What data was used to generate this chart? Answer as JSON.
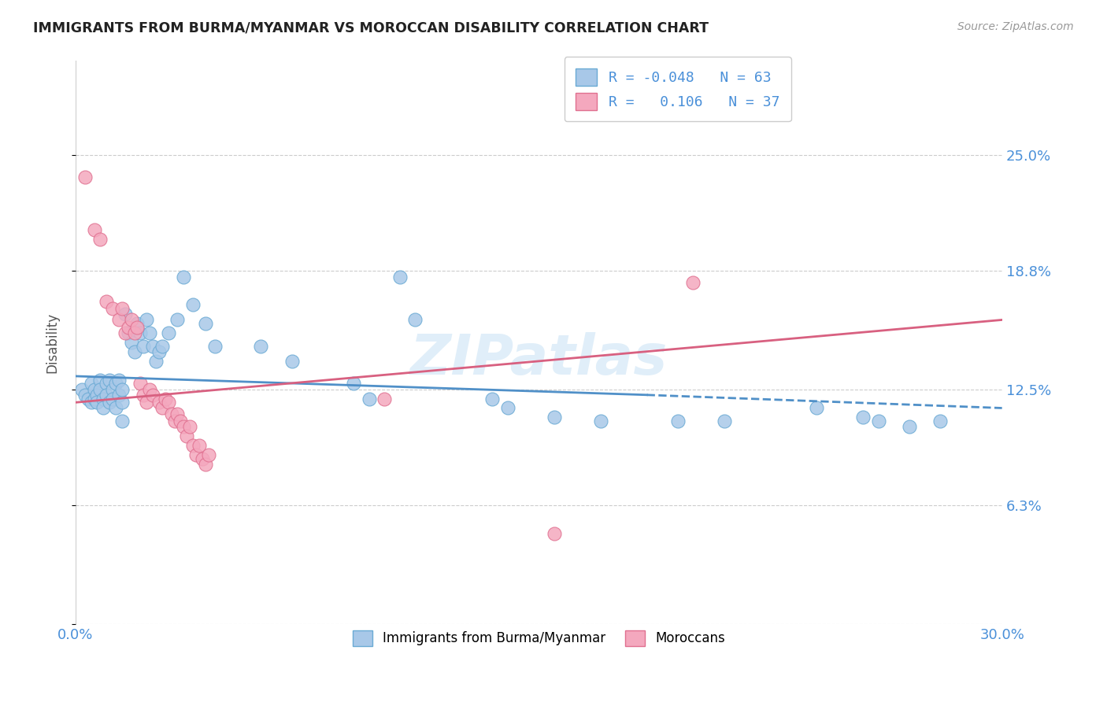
{
  "title": "IMMIGRANTS FROM BURMA/MYANMAR VS MOROCCAN DISABILITY CORRELATION CHART",
  "source": "Source: ZipAtlas.com",
  "ylabel": "Disability",
  "xlim": [
    0.0,
    0.3
  ],
  "ylim": [
    0.0,
    0.3
  ],
  "yticks": [
    0.0,
    0.063,
    0.125,
    0.188,
    0.25
  ],
  "ytick_labels": [
    "",
    "6.3%",
    "12.5%",
    "18.8%",
    "25.0%"
  ],
  "xticks": [
    0.0,
    0.05,
    0.1,
    0.15,
    0.2,
    0.25,
    0.3
  ],
  "xtick_labels": [
    "0.0%",
    "",
    "",
    "",
    "",
    "",
    "30.0%"
  ],
  "blue_color": "#a8c8e8",
  "pink_color": "#f4a8be",
  "blue_edge_color": "#6aaad4",
  "pink_edge_color": "#e07090",
  "blue_line_color": "#5090c8",
  "pink_line_color": "#d86080",
  "watermark": "ZIPatlas",
  "title_color": "#222222",
  "axis_tick_color": "#4a90d9",
  "legend_text_color": "#4a90d9",
  "blue_scatter": [
    [
      0.002,
      0.125
    ],
    [
      0.003,
      0.122
    ],
    [
      0.004,
      0.12
    ],
    [
      0.005,
      0.118
    ],
    [
      0.005,
      0.128
    ],
    [
      0.006,
      0.125
    ],
    [
      0.006,
      0.12
    ],
    [
      0.007,
      0.122
    ],
    [
      0.007,
      0.118
    ],
    [
      0.008,
      0.13
    ],
    [
      0.008,
      0.125
    ],
    [
      0.009,
      0.12
    ],
    [
      0.009,
      0.115
    ],
    [
      0.01,
      0.128
    ],
    [
      0.01,
      0.122
    ],
    [
      0.011,
      0.13
    ],
    [
      0.011,
      0.118
    ],
    [
      0.012,
      0.125
    ],
    [
      0.012,
      0.12
    ],
    [
      0.013,
      0.115
    ],
    [
      0.013,
      0.128
    ],
    [
      0.014,
      0.122
    ],
    [
      0.014,
      0.13
    ],
    [
      0.015,
      0.118
    ],
    [
      0.015,
      0.125
    ],
    [
      0.016,
      0.165
    ],
    [
      0.017,
      0.155
    ],
    [
      0.018,
      0.15
    ],
    [
      0.019,
      0.145
    ],
    [
      0.02,
      0.16
    ],
    [
      0.021,
      0.155
    ],
    [
      0.022,
      0.148
    ],
    [
      0.023,
      0.162
    ],
    [
      0.024,
      0.155
    ],
    [
      0.025,
      0.148
    ],
    [
      0.026,
      0.14
    ],
    [
      0.027,
      0.145
    ],
    [
      0.028,
      0.148
    ],
    [
      0.03,
      0.155
    ],
    [
      0.033,
      0.162
    ],
    [
      0.035,
      0.185
    ],
    [
      0.038,
      0.17
    ],
    [
      0.042,
      0.16
    ],
    [
      0.045,
      0.148
    ],
    [
      0.06,
      0.148
    ],
    [
      0.07,
      0.14
    ],
    [
      0.09,
      0.128
    ],
    [
      0.095,
      0.12
    ],
    [
      0.105,
      0.185
    ],
    [
      0.11,
      0.162
    ],
    [
      0.135,
      0.12
    ],
    [
      0.14,
      0.115
    ],
    [
      0.155,
      0.11
    ],
    [
      0.17,
      0.108
    ],
    [
      0.195,
      0.108
    ],
    [
      0.21,
      0.108
    ],
    [
      0.24,
      0.115
    ],
    [
      0.255,
      0.11
    ],
    [
      0.26,
      0.108
    ],
    [
      0.27,
      0.105
    ],
    [
      0.28,
      0.108
    ],
    [
      0.015,
      0.108
    ]
  ],
  "pink_scatter": [
    [
      0.003,
      0.238
    ],
    [
      0.006,
      0.21
    ],
    [
      0.008,
      0.205
    ],
    [
      0.01,
      0.172
    ],
    [
      0.012,
      0.168
    ],
    [
      0.014,
      0.162
    ],
    [
      0.015,
      0.168
    ],
    [
      0.016,
      0.155
    ],
    [
      0.017,
      0.158
    ],
    [
      0.018,
      0.162
    ],
    [
      0.019,
      0.155
    ],
    [
      0.02,
      0.158
    ],
    [
      0.021,
      0.128
    ],
    [
      0.022,
      0.122
    ],
    [
      0.023,
      0.118
    ],
    [
      0.024,
      0.125
    ],
    [
      0.025,
      0.122
    ],
    [
      0.027,
      0.118
    ],
    [
      0.028,
      0.115
    ],
    [
      0.029,
      0.12
    ],
    [
      0.03,
      0.118
    ],
    [
      0.031,
      0.112
    ],
    [
      0.032,
      0.108
    ],
    [
      0.033,
      0.112
    ],
    [
      0.034,
      0.108
    ],
    [
      0.035,
      0.105
    ],
    [
      0.036,
      0.1
    ],
    [
      0.037,
      0.105
    ],
    [
      0.038,
      0.095
    ],
    [
      0.039,
      0.09
    ],
    [
      0.04,
      0.095
    ],
    [
      0.041,
      0.088
    ],
    [
      0.042,
      0.085
    ],
    [
      0.043,
      0.09
    ],
    [
      0.1,
      0.12
    ],
    [
      0.2,
      0.182
    ],
    [
      0.155,
      0.048
    ]
  ]
}
